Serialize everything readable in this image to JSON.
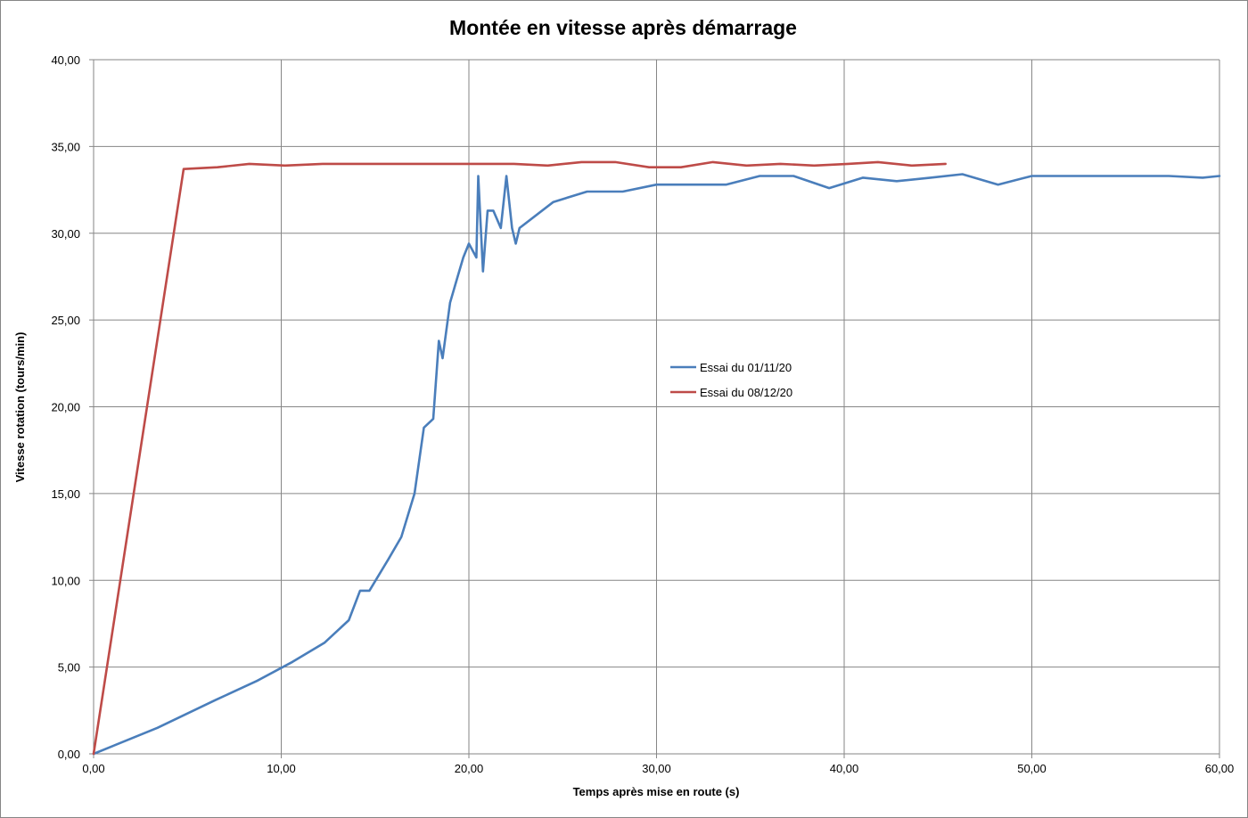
{
  "chart_data": {
    "type": "line",
    "title": "Montée en vitesse après démarrage",
    "xlabel": "Temps après mise en route (s)",
    "ylabel": "Vitesse rotation (tours/min)",
    "xlim": [
      0,
      60
    ],
    "ylim": [
      0,
      40
    ],
    "x_ticks": [
      "0,00",
      "10,00",
      "20,00",
      "30,00",
      "40,00",
      "50,00",
      "60,00"
    ],
    "y_ticks": [
      "0,00",
      "5,00",
      "10,00",
      "15,00",
      "20,00",
      "25,00",
      "30,00",
      "35,00",
      "40,00"
    ],
    "grid": true,
    "legend_position": "center-right",
    "series": [
      {
        "name": "Essai du 01/11/20",
        "color": "#4a7ebb",
        "points": [
          [
            0,
            0
          ],
          [
            3.4,
            1.5
          ],
          [
            6.5,
            3.1
          ],
          [
            8.7,
            4.2
          ],
          [
            10.6,
            5.3
          ],
          [
            12.3,
            6.4
          ],
          [
            13.6,
            7.7
          ],
          [
            14.2,
            9.4
          ],
          [
            14.7,
            9.4
          ],
          [
            15.7,
            11.2
          ],
          [
            16.4,
            12.5
          ],
          [
            17.1,
            15.0
          ],
          [
            17.6,
            18.8
          ],
          [
            18.1,
            19.3
          ],
          [
            18.4,
            23.8
          ],
          [
            18.6,
            22.8
          ],
          [
            19.0,
            26.0
          ],
          [
            19.4,
            27.5
          ],
          [
            19.7,
            28.6
          ],
          [
            20.0,
            29.4
          ],
          [
            20.4,
            28.6
          ],
          [
            20.5,
            33.3
          ],
          [
            20.75,
            27.8
          ],
          [
            21.0,
            31.3
          ],
          [
            21.3,
            31.3
          ],
          [
            21.7,
            30.3
          ],
          [
            22.0,
            33.3
          ],
          [
            22.3,
            30.3
          ],
          [
            22.5,
            29.4
          ],
          [
            22.7,
            30.3
          ],
          [
            24.5,
            31.8
          ],
          [
            26.3,
            32.4
          ],
          [
            28.2,
            32.4
          ],
          [
            30.0,
            32.8
          ],
          [
            31.8,
            32.8
          ],
          [
            33.7,
            32.8
          ],
          [
            35.5,
            33.3
          ],
          [
            37.3,
            33.3
          ],
          [
            39.2,
            32.6
          ],
          [
            41.0,
            33.2
          ],
          [
            42.8,
            33.0
          ],
          [
            44.6,
            33.2
          ],
          [
            46.3,
            33.4
          ],
          [
            48.2,
            32.8
          ],
          [
            50.0,
            33.3
          ],
          [
            51.8,
            33.3
          ],
          [
            53.6,
            33.3
          ],
          [
            55.4,
            33.3
          ],
          [
            57.3,
            33.3
          ],
          [
            59.1,
            33.2
          ],
          [
            60.0,
            33.3
          ]
        ]
      },
      {
        "name": "Essai du 08/12/20",
        "color": "#be4b48",
        "points": [
          [
            0,
            0
          ],
          [
            4.8,
            33.7
          ],
          [
            6.6,
            33.8
          ],
          [
            8.3,
            34.0
          ],
          [
            10.2,
            33.9
          ],
          [
            12.2,
            34.0
          ],
          [
            14.0,
            34.0
          ],
          [
            16.0,
            34.0
          ],
          [
            18.0,
            34.0
          ],
          [
            19.9,
            34.0
          ],
          [
            22.4,
            34.0
          ],
          [
            24.2,
            33.9
          ],
          [
            26.0,
            34.1
          ],
          [
            27.8,
            34.1
          ],
          [
            29.6,
            33.8
          ],
          [
            31.3,
            33.8
          ],
          [
            33.0,
            34.1
          ],
          [
            34.8,
            33.9
          ],
          [
            36.6,
            34.0
          ],
          [
            38.4,
            33.9
          ],
          [
            40.2,
            34.0
          ],
          [
            41.8,
            34.1
          ],
          [
            43.6,
            33.9
          ],
          [
            45.4,
            34.0
          ]
        ]
      }
    ]
  }
}
